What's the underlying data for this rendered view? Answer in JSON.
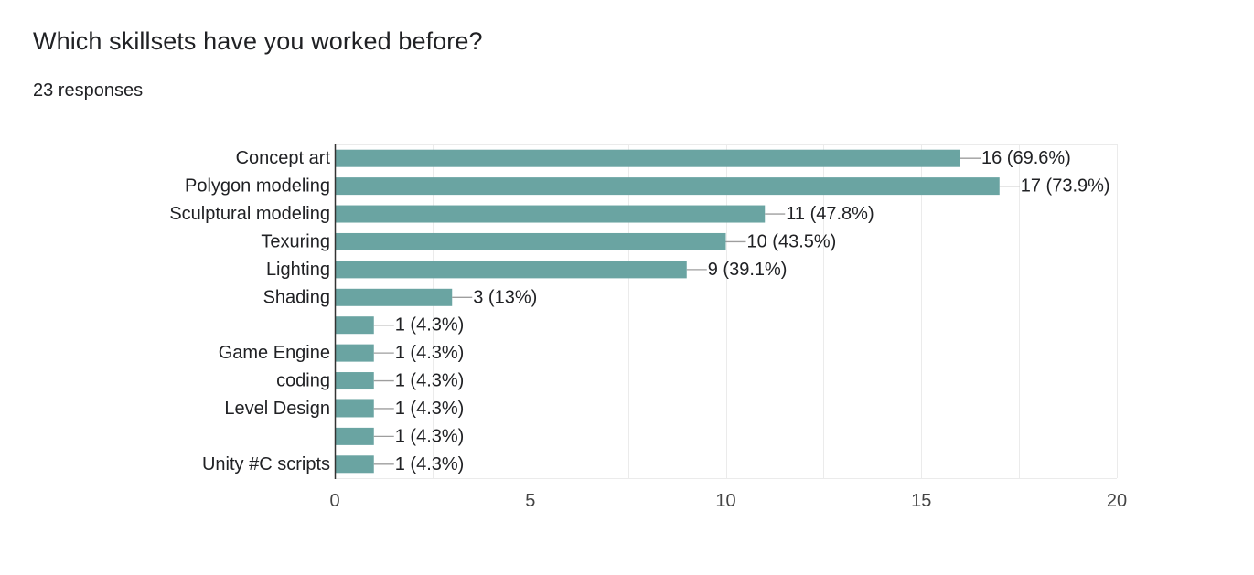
{
  "question": {
    "title": "Which skillsets have you worked before?",
    "responses": "23 responses"
  },
  "colors": {
    "bar": "#6aa4a2",
    "grid": "#ebebeb",
    "axis": "#333333",
    "leader": "#9e9e9e",
    "text": "#202124"
  },
  "chart_data": {
    "type": "bar",
    "orientation": "horizontal",
    "categories": [
      "Concept art",
      "Polygon modeling",
      "Sculptural modeling",
      "Texuring",
      "Lighting",
      "Shading",
      "",
      "Game Engine",
      "coding",
      "Level Design",
      "",
      "Unity #C scripts"
    ],
    "values": [
      16,
      17,
      11,
      10,
      9,
      3,
      1,
      1,
      1,
      1,
      1,
      1
    ],
    "data_labels": [
      "16 (69.6%)",
      "17 (73.9%)",
      "11 (47.8%)",
      "10 (43.5%)",
      "9 (39.1%)",
      "3 (13%)",
      "1 (4.3%)",
      "1 (4.3%)",
      "1 (4.3%)",
      "1 (4.3%)",
      "1 (4.3%)",
      "1 (4.3%)"
    ],
    "xlim": [
      0,
      20
    ],
    "x_ticks": [
      0,
      5,
      10,
      15,
      20
    ],
    "x_tick_labels": [
      "0",
      "5",
      "10",
      "15",
      "20"
    ],
    "grid": true
  }
}
